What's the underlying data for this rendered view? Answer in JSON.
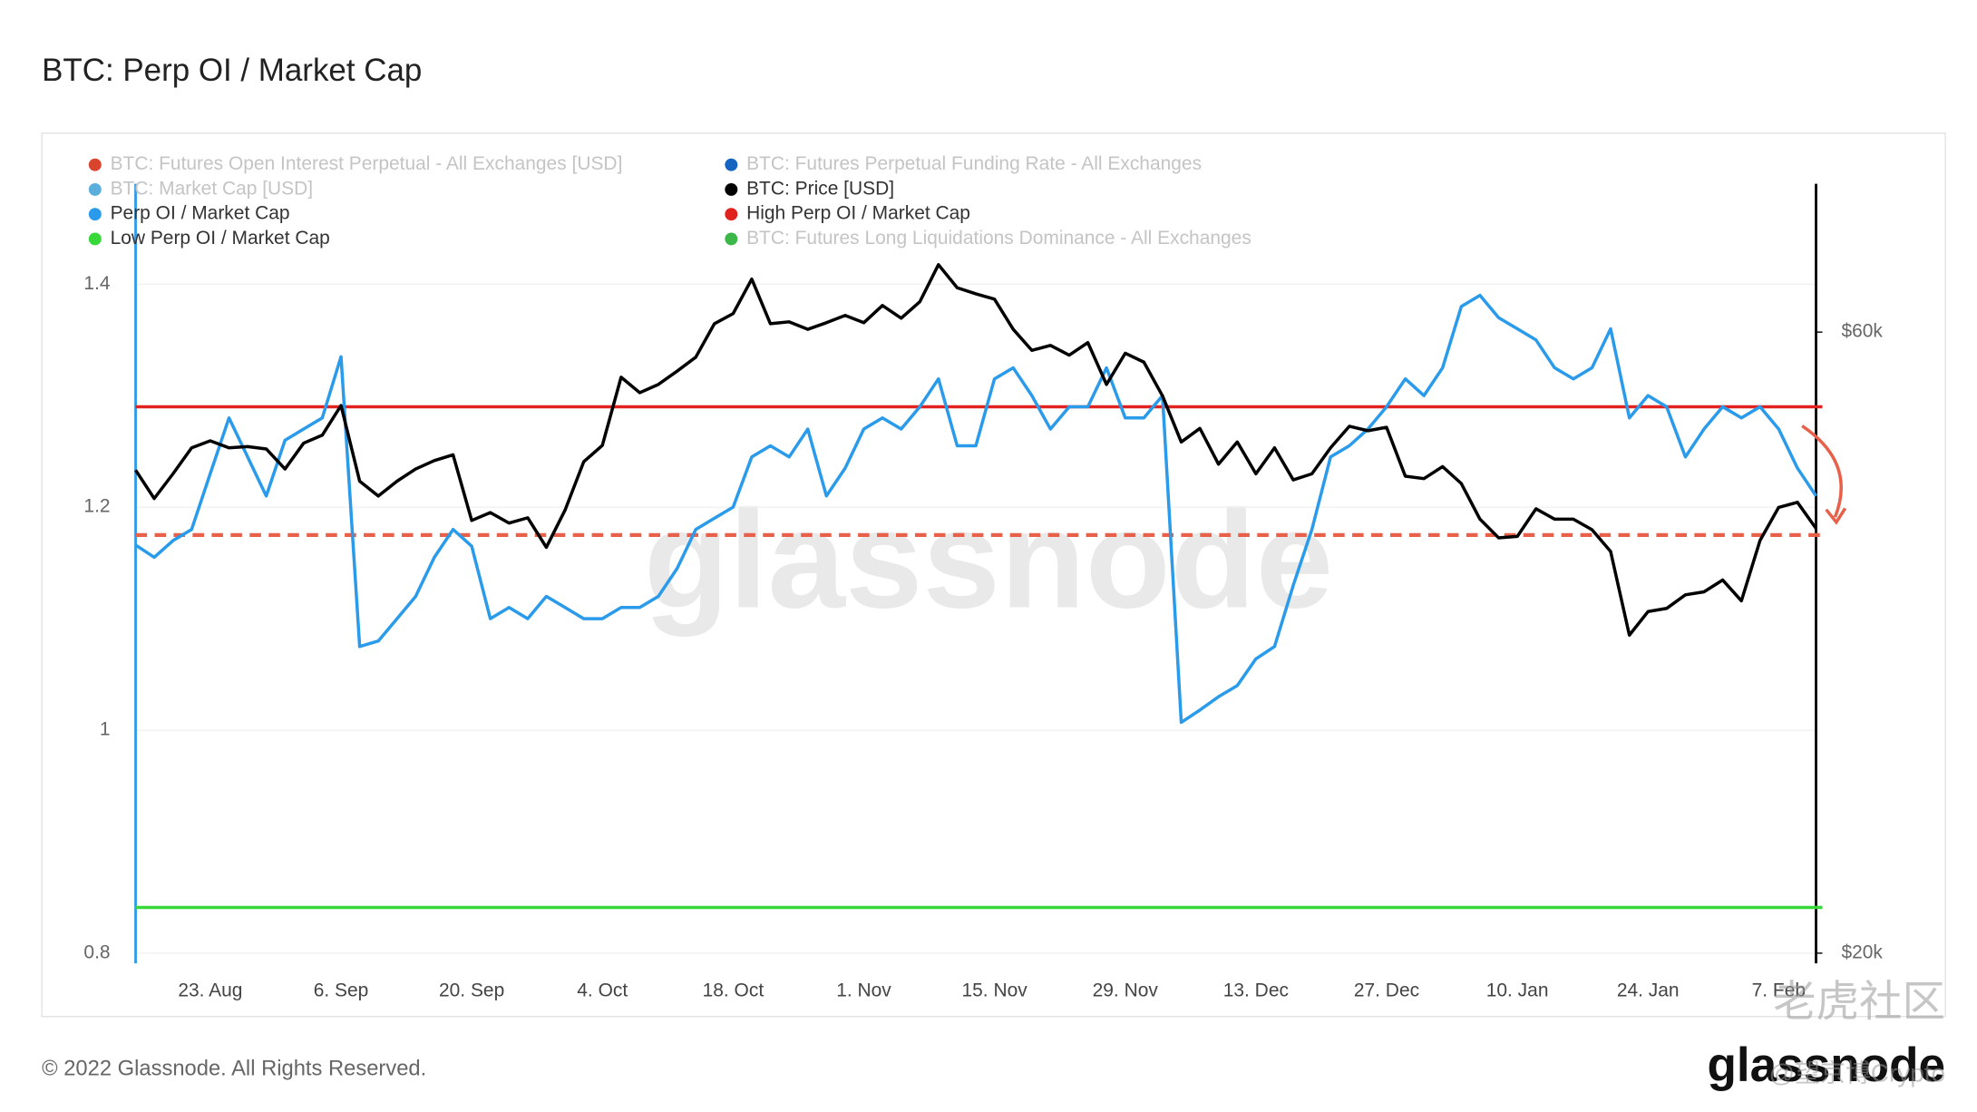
{
  "chart_data": {
    "type": "line",
    "title": "BTC: Perp OI / Market Cap",
    "footer": "© 2022 Glassnode. All Rights Reserved.",
    "brand": "glassnode",
    "watermark": "glassnode",
    "overlay_texts": [
      "老虎社区",
      "@望京博Crypto"
    ],
    "categories": [
      null,
      null,
      null,
      null,
      "23. Aug",
      null,
      null,
      null,
      null,
      null,
      null,
      "6. Sep",
      null,
      null,
      null,
      null,
      null,
      null,
      "20. Sep",
      null,
      null,
      null,
      null,
      null,
      null,
      "4. Oct",
      null,
      null,
      null,
      null,
      null,
      null,
      "18. Oct",
      null,
      null,
      null,
      null,
      null,
      null,
      "1. Nov",
      null,
      null,
      null,
      null,
      null,
      null,
      "15. Nov",
      null,
      null,
      null,
      null,
      null,
      null,
      "29. Nov",
      null,
      null,
      null,
      null,
      null,
      null,
      "13. Dec",
      null,
      null,
      null,
      null,
      null,
      null,
      "27. Dec",
      null,
      null,
      null,
      null,
      null,
      null,
      "10. Jan",
      null,
      null,
      null,
      null,
      null,
      null,
      "24. Jan",
      null,
      null,
      null,
      null,
      null,
      null,
      "7. Feb",
      null,
      null
    ],
    "ylim": [
      0.8,
      1.49
    ],
    "yticks": [
      0.8,
      1,
      1.2,
      1.4
    ],
    "y2lim": [
      20000,
      78000
    ],
    "y2log": true,
    "y2ticks": [
      {
        "value": 20000,
        "label": "$20k"
      },
      {
        "value": 60000,
        "label": "$60k"
      }
    ],
    "grid": true,
    "series": [
      {
        "name": "Perp OI / Market Cap",
        "color": "#2a9bea",
        "values": [
          1.166,
          1.155,
          1.17,
          1.18,
          1.23,
          1.28,
          1.245,
          1.21,
          1.26,
          1.27,
          1.28,
          1.335,
          1.075,
          1.08,
          1.1,
          1.12,
          1.155,
          1.18,
          1.165,
          1.1,
          1.11,
          1.1,
          1.12,
          1.11,
          1.1,
          1.1,
          1.11,
          1.11,
          1.12,
          1.145,
          1.18,
          1.19,
          1.2,
          1.245,
          1.255,
          1.245,
          1.27,
          1.21,
          1.235,
          1.27,
          1.28,
          1.27,
          1.29,
          1.315,
          1.255,
          1.255,
          1.315,
          1.325,
          1.3,
          1.27,
          1.29,
          1.29,
          1.325,
          1.28,
          1.28,
          1.3,
          1.007,
          1.018,
          1.03,
          1.04,
          1.064,
          1.075,
          1.13,
          1.18,
          1.245,
          1.255,
          1.27,
          1.29,
          1.315,
          1.3,
          1.325,
          1.38,
          1.39,
          1.37,
          1.36,
          1.35,
          1.325,
          1.315,
          1.325,
          1.36,
          1.28,
          1.3,
          1.29,
          1.245,
          1.27,
          1.29,
          1.28,
          1.29,
          1.27,
          1.235,
          1.21
        ]
      },
      {
        "name": "BTC: Price [USD]",
        "color": "#000000",
        "axis": "y2",
        "values": [
          47000,
          44700,
          46700,
          48900,
          49500,
          48900,
          49000,
          48800,
          47100,
          49300,
          50000,
          52700,
          46100,
          44900,
          46100,
          47100,
          47800,
          48300,
          43000,
          43600,
          42800,
          43200,
          41000,
          43800,
          47700,
          49100,
          55400,
          53900,
          54700,
          56000,
          57400,
          60900,
          62000,
          65900,
          60900,
          61100,
          60300,
          61000,
          61800,
          61000,
          62900,
          61500,
          63300,
          67600,
          64900,
          64200,
          63600,
          60300,
          58100,
          58600,
          57600,
          58900,
          54700,
          57800,
          56900,
          53600,
          49400,
          50600,
          47500,
          49400,
          46700,
          48900,
          46200,
          46700,
          48900,
          50800,
          50400,
          50700,
          46500,
          46300,
          47300,
          45900,
          43100,
          41700,
          41800,
          43900,
          43100,
          43100,
          42300,
          40700,
          35100,
          36600,
          36800,
          37700,
          37900,
          38700,
          37300,
          41500,
          44000,
          44400,
          42400
        ]
      }
    ],
    "reference_lines": [
      {
        "name": "High Perp OI / Market Cap",
        "color": "#e0231f",
        "value": 1.29
      },
      {
        "name": "Low Perp OI / Market Cap",
        "color": "#39d83a",
        "value": 0.841
      },
      {
        "color": "#e8604a",
        "value": 1.175,
        "dashed": true
      }
    ],
    "inactive_legend": [
      {
        "name": "BTC: Futures Open Interest Perpetual - All Exchanges [USD]",
        "color": "#d9442f"
      },
      {
        "name": "BTC: Market Cap [USD]",
        "color": "#5aaedc"
      },
      {
        "name": "BTC: Futures Perpetual Funding Rate - All Exchanges",
        "color": "#1565c0"
      },
      {
        "name": "BTC: Futures Long Liquidations Dominance - All Exchanges",
        "color": "#3cb84a"
      }
    ]
  }
}
